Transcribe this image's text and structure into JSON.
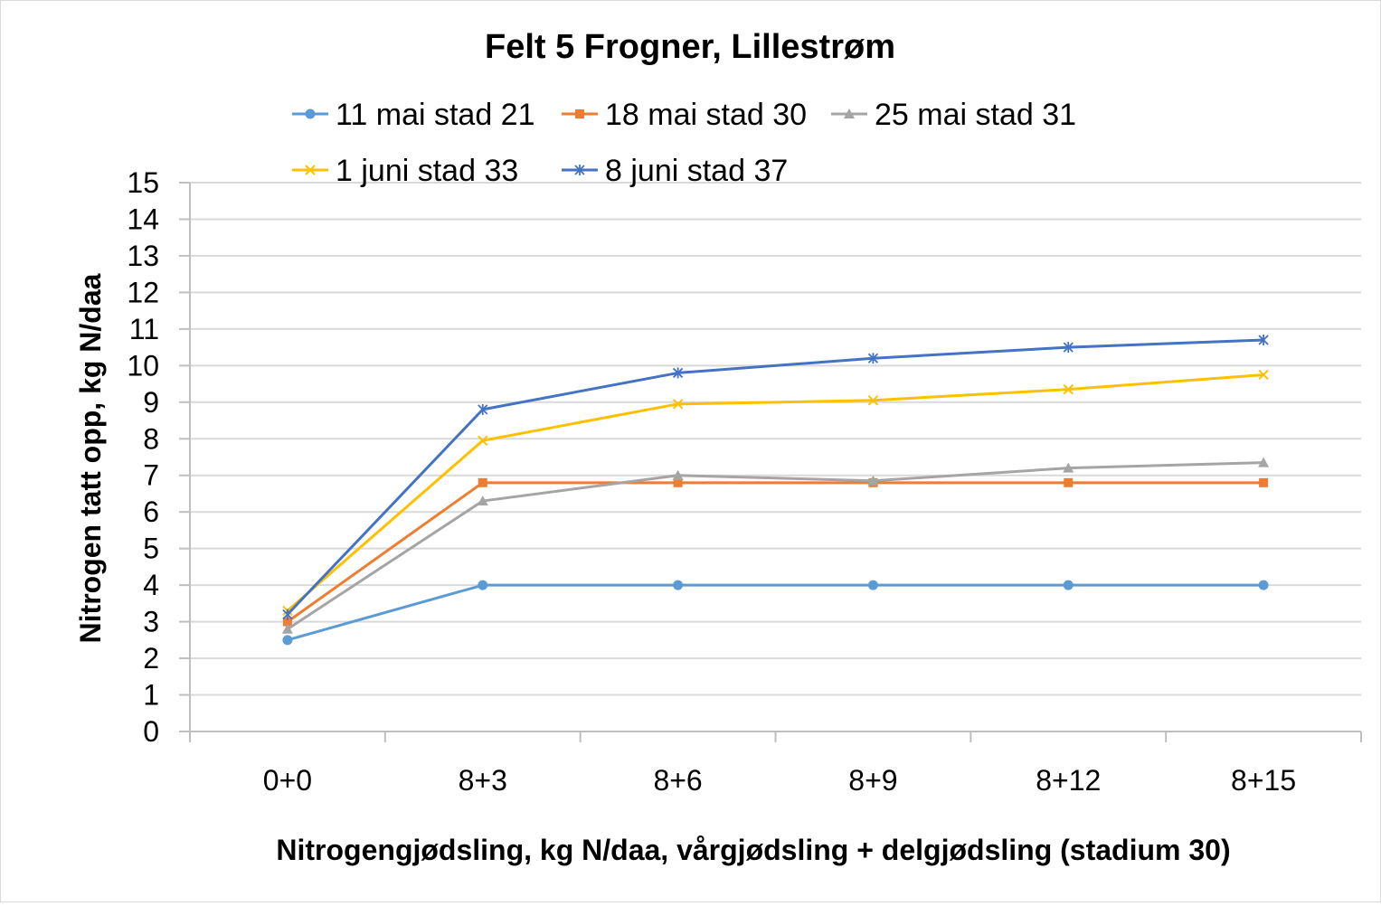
{
  "chart_data": {
    "type": "line",
    "title": "Felt 5 Frogner, Lillestrøm",
    "xlabel": "Nitrogengjødsling, kg N/daa, vårgjødsling + delgjødsling (stadium 30)",
    "ylabel": "Nitrogen tatt opp, kg N/daa",
    "categories": [
      "0+0",
      "8+3",
      "8+6",
      "8+9",
      "8+12",
      "8+15"
    ],
    "ylim": [
      0,
      15
    ],
    "yticks": [
      "0",
      "1",
      "2",
      "3",
      "4",
      "5",
      "6",
      "7",
      "8",
      "9",
      "10",
      "11",
      "12",
      "13",
      "14",
      "15"
    ],
    "grid": true,
    "legend_position": "top",
    "series": [
      {
        "name": "11 mai stad 21",
        "color": "#5B9BD5",
        "marker": "circle",
        "values": [
          2.5,
          4.0,
          4.0,
          4.0,
          4.0,
          4.0
        ]
      },
      {
        "name": "18 mai stad 30",
        "color": "#ED7D31",
        "marker": "square",
        "values": [
          3.0,
          6.8,
          6.8,
          6.8,
          6.8,
          6.8
        ]
      },
      {
        "name": "25 mai stad 31",
        "color": "#A5A5A5",
        "marker": "triangle",
        "values": [
          2.8,
          6.3,
          7.0,
          6.85,
          7.2,
          7.35
        ]
      },
      {
        "name": "1 juni stad 33",
        "color": "#FFC000",
        "marker": "x",
        "values": [
          3.3,
          7.95,
          8.95,
          9.05,
          9.35,
          9.75
        ]
      },
      {
        "name": "8 juni stad 37",
        "color": "#4472C4",
        "marker": "star",
        "values": [
          3.2,
          8.8,
          9.8,
          10.2,
          10.5,
          10.7
        ]
      }
    ]
  }
}
